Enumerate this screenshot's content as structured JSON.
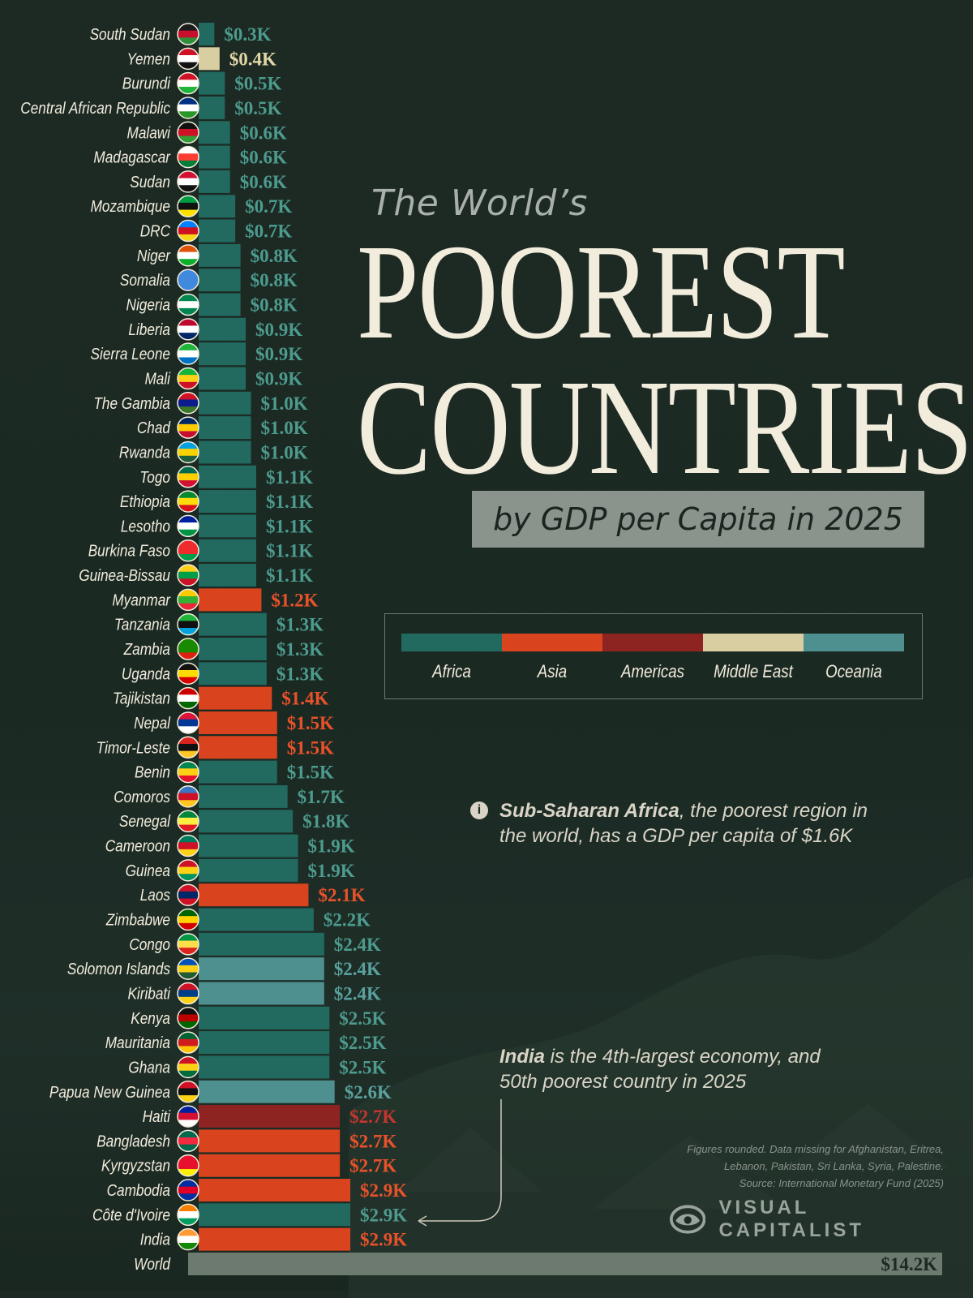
{
  "title": {
    "pre": "The World’s",
    "line1": "POOREST",
    "line2": "COUNTRIES",
    "subtitle": "by GDP per Capita in 2025"
  },
  "legend": [
    {
      "label": "Africa",
      "color": "#226a60"
    },
    {
      "label": "Asia",
      "color": "#d9441e"
    },
    {
      "label": "Americas",
      "color": "#8e2421"
    },
    {
      "label": "Middle East",
      "color": "#d9cea2"
    },
    {
      "label": "Oceania",
      "color": "#4e8f8f"
    }
  ],
  "notes": {
    "africa_bold": "Sub-Saharan Africa",
    "africa_rest": ", the poorest region in the world, has a GDP per capita of $1.6K",
    "india_bold": "India",
    "india_rest": " is the 4th-largest economy, and 50th poorest country in 2025"
  },
  "footnote": {
    "line1": "Figures rounded. Data missing for Afghanistan, Eritrea,",
    "line2": "Lebanon, Pakistan, Sri Lanka, Syria, Palestine.",
    "line3": "Source: International Monetary Fund (2025)"
  },
  "brand": "VISUAL CAPITALIST",
  "chart_data": {
    "type": "bar",
    "orientation": "horizontal",
    "unit": "USD thousands",
    "categories": [
      "South Sudan",
      "Yemen",
      "Burundi",
      "Central African Republic",
      "Malawi",
      "Madagascar",
      "Sudan",
      "Mozambique",
      "DRC",
      "Niger",
      "Somalia",
      "Nigeria",
      "Liberia",
      "Sierra Leone",
      "Mali",
      "The Gambia",
      "Chad",
      "Rwanda",
      "Togo",
      "Ethiopia",
      "Lesotho",
      "Burkina Faso",
      "Guinea-Bissau",
      "Myanmar",
      "Tanzania",
      "Zambia",
      "Uganda",
      "Tajikistan",
      "Nepal",
      "Timor-Leste",
      "Benin",
      "Comoros",
      "Senegal",
      "Cameroon",
      "Guinea",
      "Laos",
      "Zimbabwe",
      "Congo",
      "Solomon Islands",
      "Kiribati",
      "Kenya",
      "Mauritania",
      "Ghana",
      "Papua New Guinea",
      "Haiti",
      "Bangladesh",
      "Kyrgyzstan",
      "Cambodia",
      "Côte d'Ivoire",
      "India",
      "World"
    ],
    "values": [
      0.3,
      0.4,
      0.5,
      0.5,
      0.6,
      0.6,
      0.6,
      0.7,
      0.7,
      0.8,
      0.8,
      0.8,
      0.9,
      0.9,
      0.9,
      1.0,
      1.0,
      1.0,
      1.1,
      1.1,
      1.1,
      1.1,
      1.1,
      1.2,
      1.3,
      1.3,
      1.3,
      1.4,
      1.5,
      1.5,
      1.5,
      1.7,
      1.8,
      1.9,
      1.9,
      2.1,
      2.2,
      2.4,
      2.4,
      2.4,
      2.5,
      2.5,
      2.5,
      2.6,
      2.7,
      2.7,
      2.7,
      2.9,
      2.9,
      2.9,
      14.2
    ],
    "labels": [
      "$0.3K",
      "$0.4K",
      "$0.5K",
      "$0.5K",
      "$0.6K",
      "$0.6K",
      "$0.6K",
      "$0.7K",
      "$0.7K",
      "$0.8K",
      "$0.8K",
      "$0.8K",
      "$0.9K",
      "$0.9K",
      "$0.9K",
      "$1.0K",
      "$1.0K",
      "$1.0K",
      "$1.1K",
      "$1.1K",
      "$1.1K",
      "$1.1K",
      "$1.1K",
      "$1.2K",
      "$1.3K",
      "$1.3K",
      "$1.3K",
      "$1.4K",
      "$1.5K",
      "$1.5K",
      "$1.5K",
      "$1.7K",
      "$1.8K",
      "$1.9K",
      "$1.9K",
      "$2.1K",
      "$2.2K",
      "$2.4K",
      "$2.4K",
      "$2.4K",
      "$2.5K",
      "$2.5K",
      "$2.5K",
      "$2.6K",
      "$2.7K",
      "$2.7K",
      "$2.7K",
      "$2.9K",
      "$2.9K",
      "$2.9K",
      "$14.2K"
    ],
    "regions": [
      "Africa",
      "Middle East",
      "Africa",
      "Africa",
      "Africa",
      "Africa",
      "Africa",
      "Africa",
      "Africa",
      "Africa",
      "Africa",
      "Africa",
      "Africa",
      "Africa",
      "Africa",
      "Africa",
      "Africa",
      "Africa",
      "Africa",
      "Africa",
      "Africa",
      "Africa",
      "Africa",
      "Asia",
      "Africa",
      "Africa",
      "Africa",
      "Asia",
      "Asia",
      "Asia",
      "Africa",
      "Africa",
      "Africa",
      "Africa",
      "Africa",
      "Asia",
      "Africa",
      "Africa",
      "Oceania",
      "Oceania",
      "Africa",
      "Africa",
      "Africa",
      "Oceania",
      "Americas",
      "Asia",
      "Asia",
      "Asia",
      "Africa",
      "Asia",
      "World"
    ],
    "colors": {
      "Africa": "#226a60",
      "Asia": "#d9441e",
      "Americas": "#8e2421",
      "Middle East": "#d9cea2",
      "Oceania": "#4e8f8f",
      "World": "#6d7a70"
    },
    "label_colors": {
      "Africa": "#4d9b8e",
      "Asia": "#e8522a",
      "Americas": "#c4352e",
      "Middle East": "#e2d6a6",
      "Oceania": "#5aa09e",
      "World": "#1c2a23"
    },
    "flags": [
      [
        "#1b1b1b",
        "#c8102e",
        "#2f8f3a"
      ],
      [
        "#ce1126",
        "#ffffff",
        "#111111"
      ],
      [
        "#ce1126",
        "#ffffff",
        "#1eb53a"
      ],
      [
        "#003082",
        "#ffffff",
        "#289728"
      ],
      [
        "#111111",
        "#ce1126",
        "#339e35"
      ],
      [
        "#ffffff",
        "#fc3d32",
        "#007e3a"
      ],
      [
        "#d21034",
        "#ffffff",
        "#111111"
      ],
      [
        "#009a44",
        "#111111",
        "#fce100"
      ],
      [
        "#007fff",
        "#ce1021",
        "#f7d618"
      ],
      [
        "#e05206",
        "#ffffff",
        "#0db02b"
      ],
      [
        "#4189dd",
        "#4189dd",
        "#4189dd"
      ],
      [
        "#008751",
        "#ffffff",
        "#008751"
      ],
      [
        "#bf0a30",
        "#ffffff",
        "#002868"
      ],
      [
        "#1eb53a",
        "#ffffff",
        "#0072c6"
      ],
      [
        "#14b53a",
        "#fcd116",
        "#ce1126"
      ],
      [
        "#ce1126",
        "#0c1c8c",
        "#3a7728"
      ],
      [
        "#002664",
        "#fecb00",
        "#c60c30"
      ],
      [
        "#00a1de",
        "#fad201",
        "#20603d"
      ],
      [
        "#006a4e",
        "#ffce00",
        "#d21034"
      ],
      [
        "#078930",
        "#fcdd09",
        "#da121a"
      ],
      [
        "#00209f",
        "#ffffff",
        "#009543"
      ],
      [
        "#ef2b2d",
        "#ef2b2d",
        "#009e49"
      ],
      [
        "#fcd116",
        "#009e49",
        "#ce1126"
      ],
      [
        "#fecb00",
        "#34b233",
        "#ea2839"
      ],
      [
        "#1eb53a",
        "#111111",
        "#00a3dd"
      ],
      [
        "#198a00",
        "#198a00",
        "#de2010"
      ],
      [
        "#111111",
        "#fcdc04",
        "#d90000"
      ],
      [
        "#cc0000",
        "#ffffff",
        "#006600"
      ],
      [
        "#dc143c",
        "#003893",
        "#ffffff"
      ],
      [
        "#dc241f",
        "#111111",
        "#ffc726"
      ],
      [
        "#008751",
        "#fcd116",
        "#e8112d"
      ],
      [
        "#3a75c4",
        "#ce1126",
        "#ffc61e"
      ],
      [
        "#00853f",
        "#fdef42",
        "#e31b23"
      ],
      [
        "#007a5e",
        "#ce1126",
        "#fcd116"
      ],
      [
        "#ce1126",
        "#fcd116",
        "#009460"
      ],
      [
        "#ce1126",
        "#002868",
        "#ce1126"
      ],
      [
        "#006400",
        "#ffd200",
        "#d40000"
      ],
      [
        "#009543",
        "#fbde4a",
        "#dc241f"
      ],
      [
        "#0051ba",
        "#fcd116",
        "#215b33"
      ],
      [
        "#ce1126",
        "#003f87",
        "#fcd116"
      ],
      [
        "#111111",
        "#bb0000",
        "#006600"
      ],
      [
        "#006233",
        "#d01c1f",
        "#ffc400"
      ],
      [
        "#ce1126",
        "#fcd116",
        "#006b3f"
      ],
      [
        "#ce1126",
        "#111111",
        "#fcd116"
      ],
      [
        "#00209f",
        "#d21034",
        "#ffffff"
      ],
      [
        "#006a4e",
        "#f42a41",
        "#006a4e"
      ],
      [
        "#e8112d",
        "#e8112d",
        "#ffef00"
      ],
      [
        "#032ea1",
        "#e00025",
        "#032ea1"
      ],
      [
        "#f77f00",
        "#ffffff",
        "#009e60"
      ],
      [
        "#ff9933",
        "#ffffff",
        "#138808"
      ],
      [
        "none",
        "none",
        "none"
      ]
    ]
  }
}
